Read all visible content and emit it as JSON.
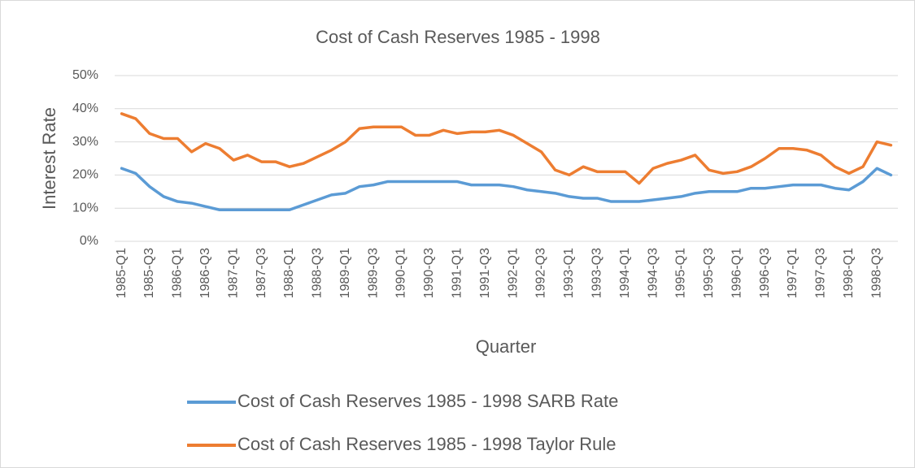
{
  "chart_data": {
    "type": "line",
    "title": "Cost of Cash Reserves 1985 - 1998",
    "x_label": "Quarter",
    "y_label": "Interest Rate",
    "categories": [
      "1985-Q1",
      null,
      "1985-Q3",
      null,
      "1986-Q1",
      null,
      "1986-Q3",
      null,
      "1987-Q1",
      null,
      "1987-Q3",
      null,
      "1988-Q1",
      null,
      "1988-Q3",
      null,
      "1989-Q1",
      null,
      "1989-Q3",
      null,
      "1990-Q1",
      null,
      "1990-Q3",
      null,
      "1991-Q1",
      null,
      "1991-Q3",
      null,
      "1992-Q1",
      null,
      "1992-Q3",
      null,
      "1993-Q1",
      null,
      "1993-Q3",
      null,
      "1994-Q1",
      null,
      "1994-Q3",
      null,
      "1995-Q1",
      null,
      "1995-Q3",
      null,
      "1996-Q1",
      null,
      "1996-Q3",
      null,
      "1997-Q1",
      null,
      "1997-Q3",
      null,
      "1998-Q1",
      null,
      "1998-Q3",
      null
    ],
    "series": [
      {
        "name": "Cost of Cash Reserves 1985 - 1998 SARB Rate",
        "color": "#5b9bd5",
        "values": [
          22,
          20.5,
          16.5,
          13.5,
          12,
          11.5,
          10.5,
          9.5,
          9.5,
          9.5,
          9.5,
          9.5,
          9.5,
          11,
          12.5,
          14,
          14.5,
          16.5,
          17,
          18,
          18,
          18,
          18,
          18,
          18,
          17,
          17,
          17,
          16.5,
          15.5,
          15,
          14.5,
          13.5,
          13,
          13,
          12,
          12,
          12,
          12.5,
          13,
          13.5,
          14.5,
          15,
          15,
          15,
          16,
          16,
          16.5,
          17,
          17,
          17,
          16,
          15.5,
          18,
          22,
          20
        ]
      },
      {
        "name": "Cost of Cash Reserves 1985 - 1998 Taylor Rule",
        "color": "#ed7d31",
        "values": [
          38.5,
          37,
          32.5,
          31,
          31,
          27,
          29.5,
          28,
          24.5,
          26,
          24,
          24,
          22.5,
          23.5,
          25.5,
          27.5,
          30,
          34,
          34.5,
          34.5,
          34.5,
          32,
          32,
          33.5,
          32.5,
          33,
          33,
          33.5,
          32,
          29.5,
          27,
          21.5,
          20,
          22.5,
          21,
          21,
          21,
          17.5,
          22,
          23.5,
          24.5,
          26,
          21.5,
          20.5,
          21,
          22.5,
          25,
          28,
          28,
          27.5,
          26,
          22.5,
          20.5,
          22.5,
          30,
          29
        ]
      }
    ],
    "ylim": [
      0,
      50
    ],
    "yticks": [
      {
        "value": 0,
        "label": "0%"
      },
      {
        "value": 10,
        "label": "10%"
      },
      {
        "value": 20,
        "label": "20%"
      },
      {
        "value": 30,
        "label": "30%"
      },
      {
        "value": 40,
        "label": "40%"
      },
      {
        "value": 50,
        "label": "50%"
      }
    ],
    "grid": true,
    "legend": "bottom"
  }
}
